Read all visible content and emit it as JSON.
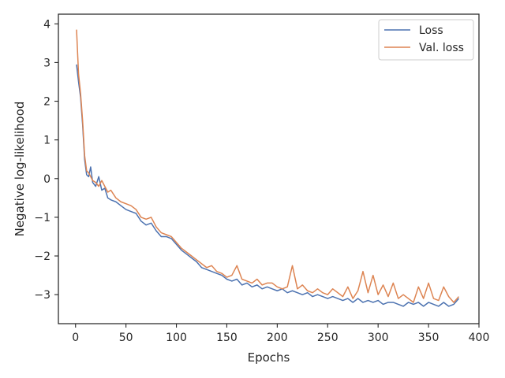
{
  "chart_data": {
    "type": "line",
    "title": "",
    "xlabel": "Epochs",
    "ylabel": "Negative log-likelihood",
    "xlim": [
      -17,
      400
    ],
    "ylim": [
      -3.75,
      4.25
    ],
    "xticks": [
      0,
      50,
      100,
      150,
      200,
      250,
      300,
      350,
      400
    ],
    "yticks": [
      -3,
      -2,
      -1,
      0,
      1,
      2,
      3,
      4
    ],
    "grid": false,
    "legend_position": "top-right",
    "series": [
      {
        "name": "Loss",
        "color": "#4c72b0",
        "x": [
          1,
          3,
          5,
          7,
          9,
          11,
          13,
          15,
          17,
          20,
          23,
          26,
          29,
          32,
          35,
          40,
          45,
          50,
          55,
          60,
          65,
          70,
          75,
          80,
          85,
          90,
          95,
          100,
          105,
          110,
          115,
          120,
          125,
          130,
          135,
          140,
          145,
          150,
          155,
          160,
          165,
          170,
          175,
          180,
          185,
          190,
          195,
          200,
          205,
          210,
          215,
          220,
          225,
          230,
          235,
          240,
          245,
          250,
          255,
          260,
          265,
          270,
          275,
          280,
          285,
          290,
          295,
          300,
          305,
          310,
          315,
          320,
          325,
          330,
          335,
          340,
          345,
          350,
          355,
          360,
          365,
          370,
          375,
          380
        ],
        "values": [
          2.95,
          2.5,
          2.1,
          1.4,
          0.5,
          0.1,
          0.05,
          0.3,
          -0.1,
          -0.2,
          0.05,
          -0.3,
          -0.25,
          -0.5,
          -0.55,
          -0.6,
          -0.7,
          -0.8,
          -0.85,
          -0.9,
          -1.1,
          -1.2,
          -1.15,
          -1.35,
          -1.5,
          -1.5,
          -1.55,
          -1.7,
          -1.85,
          -1.95,
          -2.05,
          -2.15,
          -2.3,
          -2.35,
          -2.4,
          -2.45,
          -2.5,
          -2.6,
          -2.65,
          -2.6,
          -2.75,
          -2.7,
          -2.8,
          -2.75,
          -2.85,
          -2.8,
          -2.85,
          -2.9,
          -2.85,
          -2.95,
          -2.9,
          -2.95,
          -3.0,
          -2.95,
          -3.05,
          -3.0,
          -3.05,
          -3.1,
          -3.05,
          -3.1,
          -3.15,
          -3.1,
          -3.2,
          -3.1,
          -3.2,
          -3.15,
          -3.2,
          -3.15,
          -3.25,
          -3.2,
          -3.2,
          -3.25,
          -3.3,
          -3.2,
          -3.25,
          -3.2,
          -3.3,
          -3.2,
          -3.25,
          -3.3,
          -3.2,
          -3.3,
          -3.25,
          -3.1
        ]
      },
      {
        "name": "Val. loss",
        "color": "#dd8452",
        "x": [
          1,
          3,
          5,
          7,
          9,
          11,
          13,
          15,
          17,
          20,
          23,
          26,
          29,
          32,
          35,
          40,
          45,
          50,
          55,
          60,
          65,
          70,
          75,
          80,
          85,
          90,
          95,
          100,
          105,
          110,
          115,
          120,
          125,
          130,
          135,
          140,
          145,
          150,
          155,
          160,
          165,
          170,
          175,
          180,
          185,
          190,
          195,
          200,
          205,
          210,
          215,
          220,
          225,
          230,
          235,
          240,
          245,
          250,
          255,
          260,
          265,
          270,
          275,
          280,
          285,
          290,
          295,
          300,
          305,
          310,
          315,
          320,
          325,
          330,
          335,
          340,
          345,
          350,
          355,
          360,
          365,
          370,
          375,
          380
        ],
        "values": [
          3.85,
          2.7,
          2.2,
          1.5,
          0.6,
          0.2,
          0.15,
          0.05,
          -0.05,
          -0.1,
          -0.2,
          -0.05,
          -0.2,
          -0.35,
          -0.3,
          -0.5,
          -0.6,
          -0.65,
          -0.7,
          -0.8,
          -1.0,
          -1.05,
          -1.0,
          -1.25,
          -1.4,
          -1.45,
          -1.5,
          -1.65,
          -1.8,
          -1.9,
          -2.0,
          -2.1,
          -2.2,
          -2.3,
          -2.25,
          -2.4,
          -2.45,
          -2.55,
          -2.5,
          -2.25,
          -2.6,
          -2.65,
          -2.7,
          -2.6,
          -2.75,
          -2.7,
          -2.7,
          -2.8,
          -2.85,
          -2.8,
          -2.25,
          -2.85,
          -2.75,
          -2.9,
          -2.95,
          -2.85,
          -2.95,
          -3.0,
          -2.85,
          -2.95,
          -3.05,
          -2.8,
          -3.1,
          -2.9,
          -2.4,
          -2.95,
          -2.5,
          -3.0,
          -2.75,
          -3.05,
          -2.7,
          -3.1,
          -3.0,
          -3.1,
          -3.2,
          -2.8,
          -3.1,
          -2.7,
          -3.1,
          -3.15,
          -2.8,
          -3.05,
          -3.2,
          -3.05
        ]
      }
    ]
  }
}
